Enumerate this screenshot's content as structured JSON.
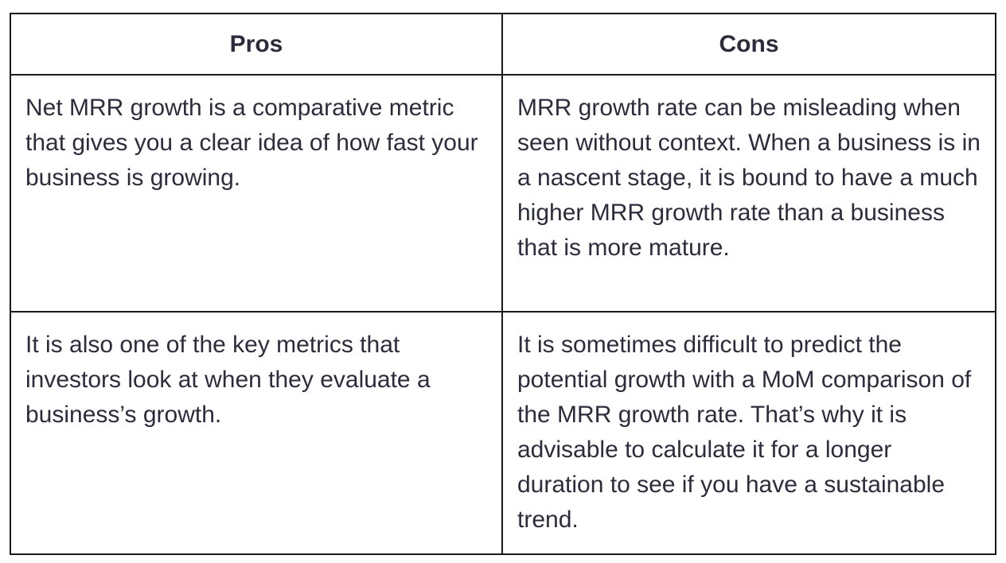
{
  "table": {
    "headers": [
      "Pros",
      "Cons"
    ],
    "rows": [
      {
        "pro": "Net MRR growth is a comparative metric that gives you a clear idea of how fast your business is growing.",
        "con": "MRR growth rate can be misleading when seen without context. When a business is in a nascent stage, it is bound to have a much higher MRR growth rate than a business that is more mature."
      },
      {
        "pro": "It is also one of the key metrics that investors look at when they evaluate a business’s growth.",
        "con": "It is sometimes difficult to predict the potential growth with a MoM comparison of the MRR growth rate. That’s why it is advisable to calculate it for a longer duration to see if you have a sustainable trend."
      }
    ]
  }
}
